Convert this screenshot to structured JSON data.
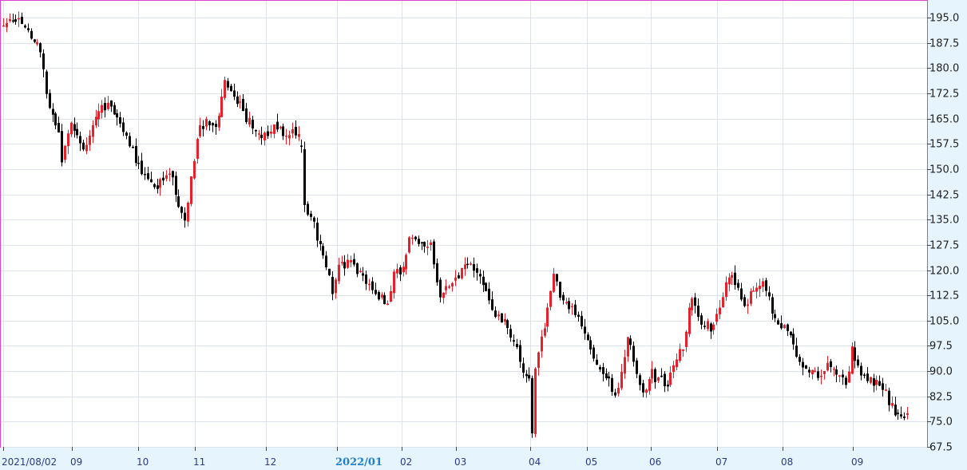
{
  "chart_data": {
    "type": "candlestick",
    "title": "",
    "xlabel": "",
    "ylabel": "",
    "ylim": [
      67.5,
      200
    ],
    "grid": true,
    "y_ticks": [
      "195.0",
      "187.5",
      "180.0",
      "172.5",
      "165.0",
      "157.5",
      "150.0",
      "142.5",
      "135.0",
      "127.5",
      "120.0",
      "112.5",
      "105.0",
      "97.5",
      "90.0",
      "82.5",
      "75.0",
      "67.5"
    ],
    "x_ticks": [
      {
        "label": "2021/08/02",
        "bold": false
      },
      {
        "label": "09",
        "bold": false
      },
      {
        "label": "10",
        "bold": false
      },
      {
        "label": "11",
        "bold": false
      },
      {
        "label": "12",
        "bold": false
      },
      {
        "label": "2022/01",
        "bold": true
      },
      {
        "label": "02",
        "bold": false
      },
      {
        "label": "03",
        "bold": false
      },
      {
        "label": "04",
        "bold": false
      },
      {
        "label": "05",
        "bold": false
      },
      {
        "label": "06",
        "bold": false
      },
      {
        "label": "07",
        "bold": false
      },
      {
        "label": "08",
        "bold": false
      },
      {
        "label": "09",
        "bold": false
      }
    ],
    "colors": {
      "up": "#e8202a",
      "down": "#000000",
      "frame": "#e040d0",
      "grid": "#dde3ea",
      "background": "#e6f5fd",
      "plot_background": "#ffffff"
    },
    "anchors": [
      [
        0,
        192
      ],
      [
        4,
        195
      ],
      [
        8,
        190
      ],
      [
        12,
        185
      ],
      [
        14,
        172
      ],
      [
        18,
        160
      ],
      [
        19,
        152
      ],
      [
        22,
        163
      ],
      [
        26,
        156
      ],
      [
        30,
        165
      ],
      [
        34,
        170
      ],
      [
        38,
        162
      ],
      [
        42,
        155
      ],
      [
        46,
        148
      ],
      [
        50,
        145
      ],
      [
        54,
        150
      ],
      [
        56,
        142
      ],
      [
        59,
        135
      ],
      [
        61,
        147
      ],
      [
        63,
        160
      ],
      [
        66,
        165
      ],
      [
        69,
        162
      ],
      [
        72,
        176
      ],
      [
        76,
        170
      ],
      [
        80,
        164
      ],
      [
        84,
        159
      ],
      [
        88,
        163
      ],
      [
        92,
        160
      ],
      [
        94,
        163
      ],
      [
        97,
        157
      ],
      [
        98,
        139
      ],
      [
        101,
        133
      ],
      [
        104,
        125
      ],
      [
        107,
        113
      ],
      [
        109,
        122
      ],
      [
        113,
        122
      ],
      [
        117,
        117
      ],
      [
        121,
        113
      ],
      [
        125,
        110
      ],
      [
        127,
        118
      ],
      [
        130,
        121
      ],
      [
        132,
        130
      ],
      [
        135,
        128
      ],
      [
        139,
        127
      ],
      [
        142,
        113
      ],
      [
        145,
        115
      ],
      [
        148,
        119
      ],
      [
        151,
        122
      ],
      [
        154,
        118
      ],
      [
        157,
        114
      ],
      [
        160,
        106
      ],
      [
        163,
        104
      ],
      [
        166,
        98
      ],
      [
        169,
        91
      ],
      [
        171,
        88
      ],
      [
        172,
        72
      ],
      [
        173,
        91
      ],
      [
        176,
        104
      ],
      [
        179,
        118
      ],
      [
        182,
        110
      ],
      [
        185,
        110
      ],
      [
        188,
        104
      ],
      [
        190,
        100
      ],
      [
        193,
        91
      ],
      [
        196,
        88
      ],
      [
        199,
        83
      ],
      [
        201,
        90
      ],
      [
        203,
        100
      ],
      [
        205,
        93
      ],
      [
        208,
        84
      ],
      [
        211,
        89
      ],
      [
        214,
        87
      ],
      [
        216,
        85
      ],
      [
        218,
        92
      ],
      [
        221,
        98
      ],
      [
        224,
        112
      ],
      [
        227,
        105
      ],
      [
        230,
        103
      ],
      [
        233,
        110
      ],
      [
        236,
        118
      ],
      [
        239,
        115
      ],
      [
        241,
        110
      ],
      [
        244,
        114
      ],
      [
        247,
        117
      ],
      [
        250,
        108
      ],
      [
        253,
        104
      ],
      [
        256,
        100
      ],
      [
        259,
        93
      ],
      [
        262,
        90
      ],
      [
        265,
        89
      ],
      [
        268,
        92
      ],
      [
        271,
        88
      ],
      [
        274,
        86
      ],
      [
        276,
        96
      ],
      [
        279,
        90
      ],
      [
        282,
        87
      ],
      [
        284,
        87
      ],
      [
        287,
        83
      ],
      [
        290,
        78
      ],
      [
        292,
        76
      ],
      [
        294,
        77
      ]
    ],
    "gaps": [
      [
        97,
        98
      ],
      [
        294,
        295
      ]
    ]
  }
}
